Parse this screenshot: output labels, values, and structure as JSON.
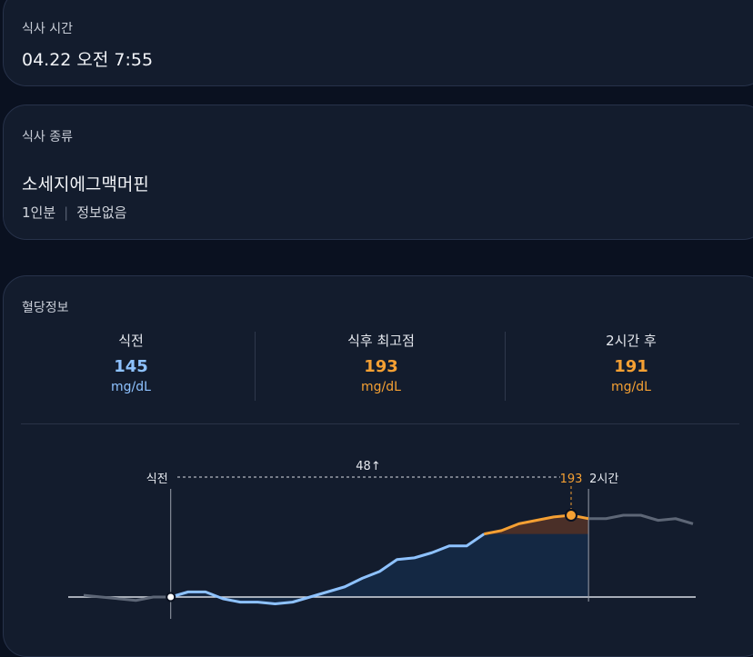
{
  "meal_time": {
    "label": "식사 시간",
    "value": "04.22 오전 7:55"
  },
  "meal_type": {
    "label": "식사 종류",
    "food": "소세지에그맥머핀",
    "portion": "1인분",
    "info": "정보없음"
  },
  "glucose": {
    "label": "혈당정보",
    "stats": [
      {
        "name": "식전",
        "value": "145",
        "unit": "mg/dL",
        "color": "#8ec2ff"
      },
      {
        "name": "식후 최고점",
        "value": "193",
        "unit": "mg/dL",
        "color": "#f5a033"
      },
      {
        "name": "2시간 후",
        "value": "191",
        "unit": "mg/dL",
        "color": "#f5a033"
      }
    ]
  },
  "chart_data": {
    "type": "line",
    "annotations": {
      "start": "식전",
      "end": "2시간",
      "rise": "48↑",
      "peak": "193"
    },
    "series": [
      {
        "color": "#5d6676",
        "values": [
          146,
          145,
          144,
          143,
          145,
          145,
          null,
          null,
          null,
          null,
          null,
          null,
          null,
          null,
          null,
          null,
          null,
          null,
          null,
          null,
          null,
          null,
          null,
          null,
          null,
          null,
          null,
          null,
          null,
          null,
          null,
          null,
          null,
          null,
          null,
          null
        ]
      },
      {
        "color": "#8ec2ff",
        "values": [
          null,
          null,
          null,
          null,
          null,
          145,
          148,
          148,
          144,
          142,
          142,
          141,
          142,
          145,
          148,
          151,
          156,
          160,
          167,
          168,
          171,
          175,
          175,
          182,
          null,
          null,
          null,
          null,
          null,
          null,
          null,
          null,
          null,
          null,
          null,
          null
        ]
      },
      {
        "color": "#f5a033",
        "values": [
          null,
          null,
          null,
          null,
          null,
          null,
          null,
          null,
          null,
          null,
          null,
          null,
          null,
          null,
          null,
          null,
          null,
          null,
          null,
          null,
          null,
          null,
          null,
          182,
          184,
          188,
          190,
          192,
          193,
          191,
          null,
          null,
          null,
          null,
          null,
          null
        ]
      },
      {
        "color": "#5d6676",
        "values": [
          null,
          null,
          null,
          null,
          null,
          null,
          null,
          null,
          null,
          null,
          null,
          null,
          null,
          null,
          null,
          null,
          null,
          null,
          null,
          null,
          null,
          null,
          null,
          null,
          null,
          null,
          null,
          null,
          null,
          191,
          191,
          193,
          193,
          190,
          191,
          188
        ]
      }
    ]
  }
}
